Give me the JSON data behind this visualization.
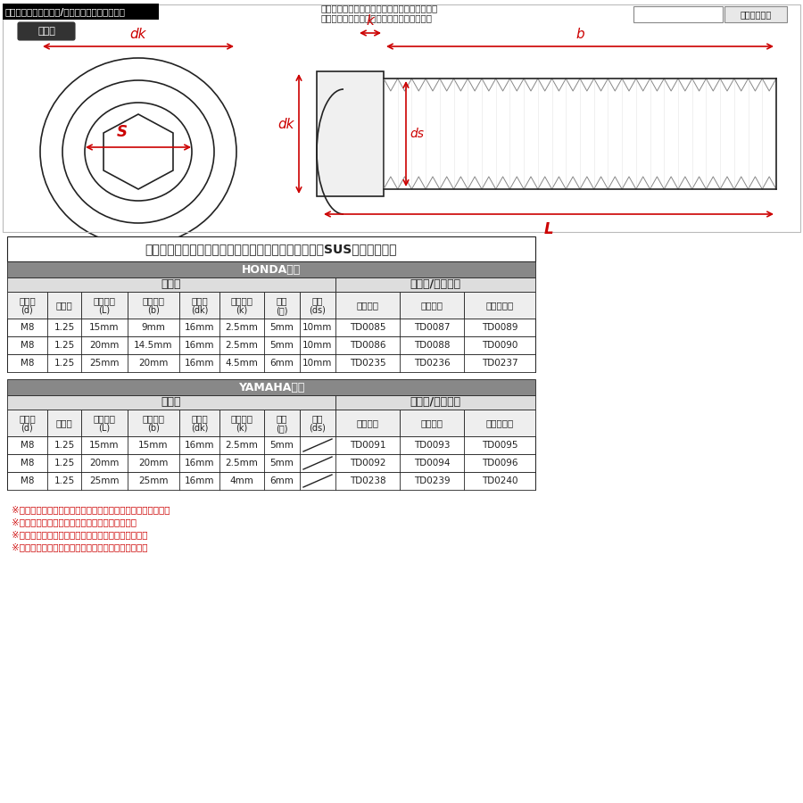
{
  "bg_color": "#ffffff",
  "line_color": "#222222",
  "red_color": "#cc0000",
  "header_bg": "#555555",
  "header_fg": "#ffffff",
  "subheader_bg": "#cccccc",
  "subheader_fg": "#222222",
  "title_text": "ディスクローターボルト【トライアングルヘッド】（SUSステンレス）",
  "top_header": "ラインアップ（カラー/サイズ品番一覧表共通）",
  "search_hint": "ストア内検索に商品番号を入力して頂けますと\nお探しの商品に素早くアクセスが出来ます。",
  "search_btn": "ストア内検索",
  "rikkaku_label": "六角穴",
  "honda_label": "HONDA車用",
  "yamaha_label": "YAMAHA車用",
  "size_label": "サイズ",
  "color_label": "カラー/当店品番",
  "col_headers_line1": [
    "呼び径",
    "ピッチ",
    "呼び長さ",
    "ネジ長さ",
    "頭部径",
    "頭部高さ",
    "平径",
    "軸径",
    "シルバー",
    "ゴールド",
    "焼きチタン"
  ],
  "col_headers_line2": [
    "(d)",
    "",
    "(L)",
    "(b)",
    "(dk)",
    "(k)",
    "(ｓ)",
    "(ds)",
    "",
    "",
    ""
  ],
  "honda_rows": [
    [
      "M8",
      "1.25",
      "15mm",
      "9mm",
      "16mm",
      "2.5mm",
      "5mm",
      "10mm",
      "TD0085",
      "TD0087",
      "TD0089"
    ],
    [
      "M8",
      "1.25",
      "20mm",
      "14.5mm",
      "16mm",
      "2.5mm",
      "5mm",
      "10mm",
      "TD0086",
      "TD0088",
      "TD0090"
    ],
    [
      "M8",
      "1.25",
      "25mm",
      "20mm",
      "16mm",
      "4.5mm",
      "6mm",
      "10mm",
      "TD0235",
      "TD0236",
      "TD0237"
    ]
  ],
  "yamaha_rows": [
    [
      "M8",
      "1.25",
      "15mm",
      "15mm",
      "16mm",
      "2.5mm",
      "5mm",
      "",
      "TD0091",
      "TD0093",
      "TD0095"
    ],
    [
      "M8",
      "1.25",
      "20mm",
      "20mm",
      "16mm",
      "2.5mm",
      "5mm",
      "",
      "TD0092",
      "TD0094",
      "TD0096"
    ],
    [
      "M8",
      "1.25",
      "25mm",
      "25mm",
      "16mm",
      "4mm",
      "6mm",
      "",
      "TD0238",
      "TD0239",
      "TD0240"
    ]
  ],
  "notes": [
    "※記載のサイズは平均値です。個体により誤差がございます。",
    "※個体差により着色が異なる場合がございます。",
    "※製造ロットにより仕様が変わる場合がございます。",
    "※ご注文後のサイズやカラーのご変更は出来ません。"
  ]
}
